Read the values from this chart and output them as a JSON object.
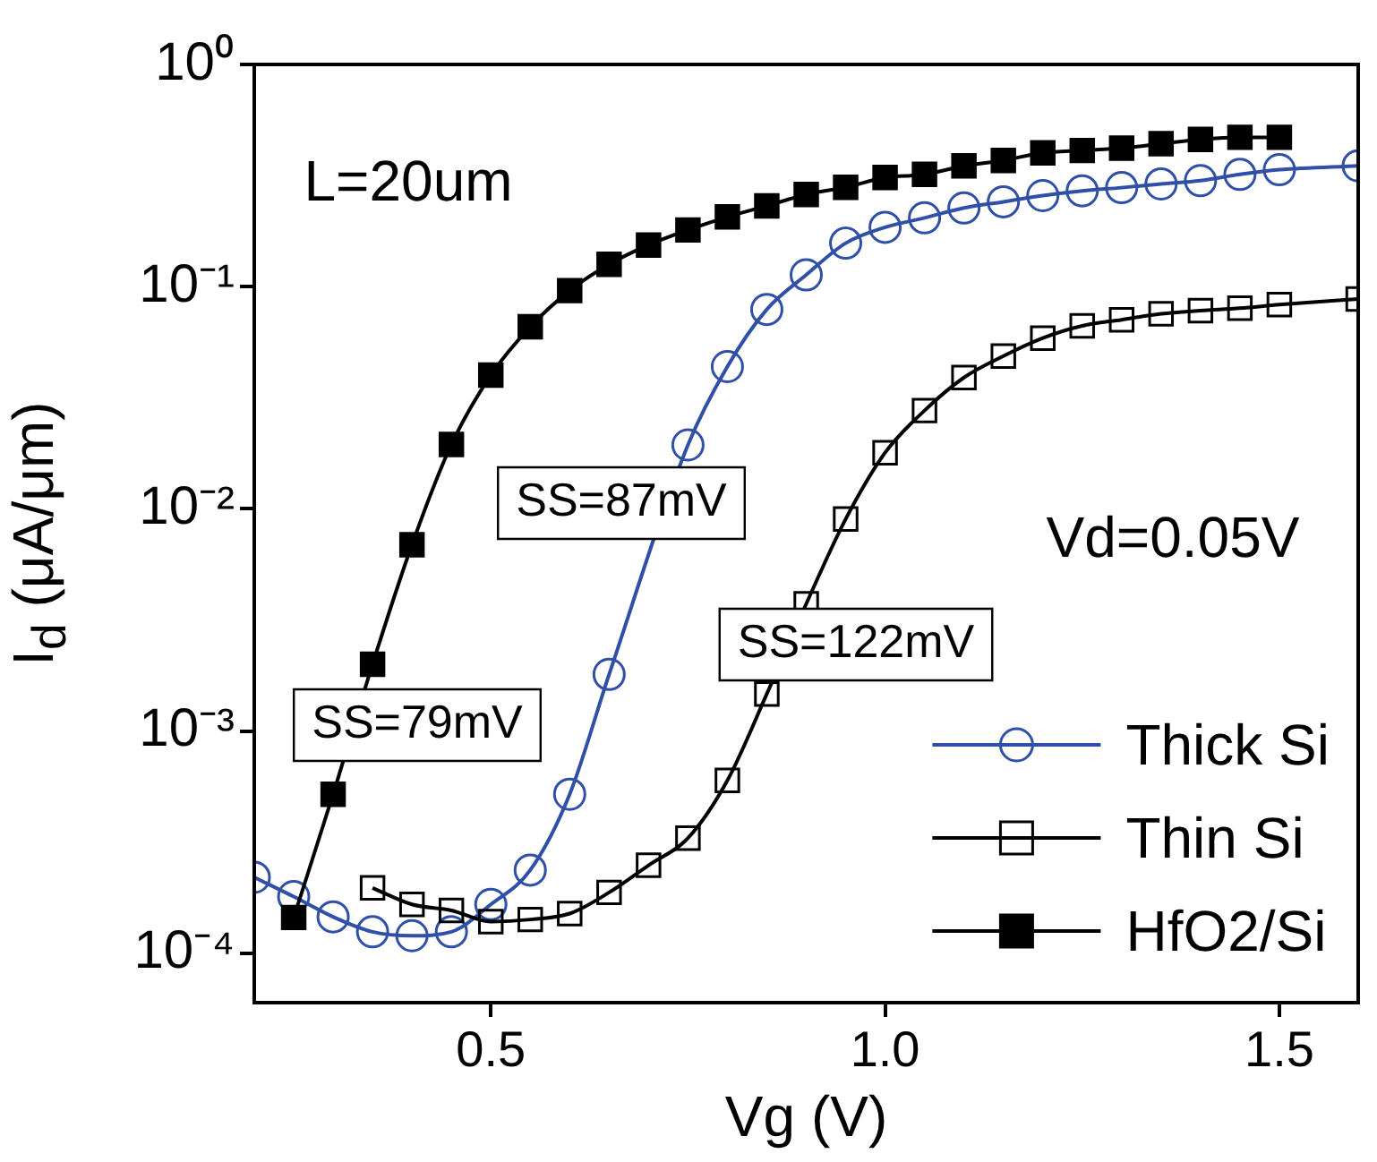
{
  "chart_data": {
    "type": "line",
    "xlabel": "Vg (V)",
    "ylabel": "I$_{d}$ (μA/μm)",
    "xlim": [
      0.2,
      1.6
    ],
    "xticks": [
      0.5,
      {
        "value": 1.0,
        "label": "1.0"
      },
      1.5
    ],
    "ylim": [
      6e-05,
      1
    ],
    "yticks": [
      {
        "value": 0.0001,
        "label": "10⁻⁴"
      },
      {
        "value": 0.001,
        "label": "10⁻³"
      },
      {
        "value": 0.01,
        "label": "10⁻²"
      },
      {
        "value": 0.1,
        "label": "10⁻¹"
      },
      {
        "value": 1,
        "label": "10⁰"
      }
    ],
    "log": "y",
    "legend": "bottom right",
    "annotations": [
      "L=20um",
      "Vd=0.05V",
      "SS=79mV",
      "SS=87mV",
      "SS=122mV"
    ],
    "series": [
      {
        "name": "Thick Si",
        "color": "#2f4fa8",
        "marker": "circle",
        "x": [
          0.2,
          0.25,
          0.3,
          0.35,
          0.4,
          0.45,
          0.5,
          0.55,
          0.6,
          0.65,
          0.7,
          0.75,
          0.8,
          0.85,
          0.9,
          0.95,
          1.0,
          1.05,
          1.1,
          1.15,
          1.2,
          1.25,
          1.3,
          1.35,
          1.4,
          1.45,
          1.5,
          1.6
        ],
        "values": [
          0.00022,
          0.00018,
          0.000146,
          0.000125,
          0.00012,
          0.000125,
          0.000166,
          0.000237,
          0.00052,
          0.0018,
          null,
          0.0194,
          0.0437,
          0.079,
          0.113,
          0.157,
          0.185,
          0.204,
          0.226,
          0.241,
          0.257,
          0.27,
          0.279,
          0.29,
          0.3,
          0.32,
          0.336,
          0.35
        ]
      },
      {
        "name": "Thin Si",
        "color": "#000000",
        "marker": "square",
        "x": [
          0.35,
          0.4,
          0.45,
          0.5,
          0.55,
          0.6,
          0.65,
          0.7,
          0.75,
          0.8,
          0.85,
          0.9,
          0.95,
          1.0,
          1.05,
          1.1,
          1.15,
          1.2,
          1.25,
          1.3,
          1.35,
          1.4,
          1.45,
          1.5,
          1.6
        ],
        "values": [
          0.000197,
          0.000166,
          0.000156,
          0.000139,
          0.000142,
          0.000151,
          0.000188,
          0.000249,
          0.00033,
          0.0006,
          0.00147,
          0.00374,
          0.009,
          0.0179,
          0.0277,
          0.039,
          0.0487,
          0.0587,
          0.0666,
          0.071,
          0.0755,
          0.078,
          0.08,
          0.083,
          0.088
        ]
      },
      {
        "name": "HfO2/Si",
        "color": "#000000",
        "marker": "square",
        "x": [
          0.25,
          0.3,
          0.35,
          0.4,
          0.45,
          0.5,
          0.55,
          0.6,
          0.65,
          0.7,
          0.75,
          0.8,
          0.85,
          0.9,
          0.95,
          1.0,
          1.05,
          1.1,
          1.15,
          1.2,
          1.25,
          1.3,
          1.35,
          1.4,
          1.45,
          1.5
        ],
        "values": [
          0.000145,
          0.00052,
          0.002,
          0.0069,
          0.0195,
          0.04,
          0.066,
          0.096,
          0.126,
          0.154,
          0.18,
          0.206,
          0.231,
          0.26,
          0.28,
          0.31,
          0.32,
          0.35,
          0.37,
          0.4,
          0.41,
          0.42,
          0.44,
          0.46,
          0.47,
          0.47
        ]
      }
    ]
  }
}
